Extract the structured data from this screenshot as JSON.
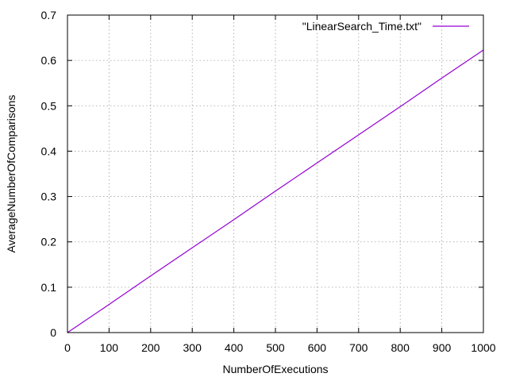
{
  "chart_data": {
    "type": "line",
    "title": "",
    "xlabel": "NumberOfExecutions",
    "ylabel": "AverageNumberOfComparisons",
    "xlim": [
      0,
      1000
    ],
    "ylim": [
      0,
      0.7
    ],
    "xticks": [
      0,
      100,
      200,
      300,
      400,
      500,
      600,
      700,
      800,
      900,
      1000
    ],
    "yticks": [
      0,
      0.1,
      0.2,
      0.3,
      0.4,
      0.5,
      0.6,
      0.7
    ],
    "xtick_labels": [
      "0",
      "100",
      "200",
      "300",
      "400",
      "500",
      "600",
      "700",
      "800",
      "900",
      "1000"
    ],
    "ytick_labels": [
      "0",
      "0.1",
      "0.2",
      "0.3",
      "0.4",
      "0.5",
      "0.6",
      "0.7"
    ],
    "grid": true,
    "legend_position": "top-right",
    "series": [
      {
        "name": "\"LinearSearch_Time.txt\"",
        "color": "#9400d3",
        "x": [
          0,
          100,
          200,
          300,
          400,
          500,
          600,
          700,
          800,
          900,
          1000
        ],
        "y": [
          0,
          0.062,
          0.125,
          0.187,
          0.249,
          0.312,
          0.374,
          0.436,
          0.498,
          0.561,
          0.623
        ]
      }
    ]
  }
}
